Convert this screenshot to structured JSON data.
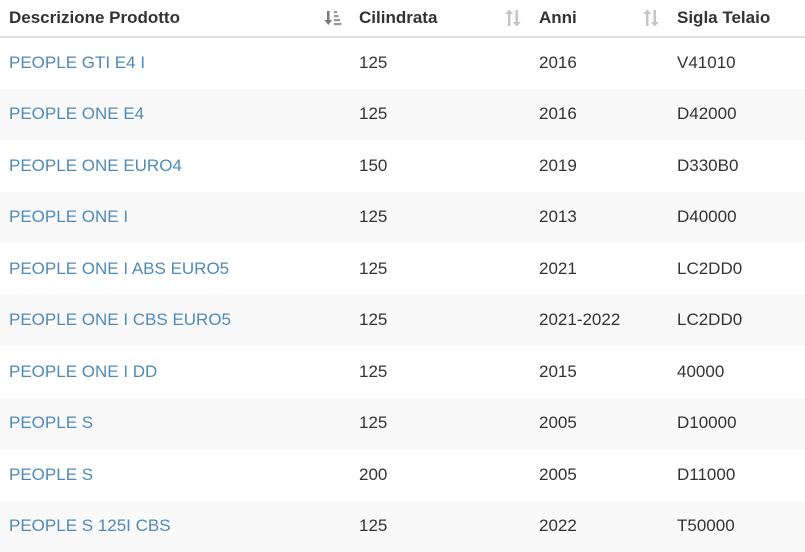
{
  "table": {
    "headers": [
      {
        "label": "Descrizione Prodotto",
        "sort": "sorted-desc",
        "icon": "sort-descending-icon"
      },
      {
        "label": "Cilindrata",
        "sort": "unsorted",
        "icon": "sort-both-icon"
      },
      {
        "label": "Anni",
        "sort": "unsorted",
        "icon": "sort-both-icon"
      },
      {
        "label": "Sigla Telaio",
        "sort": "none",
        "icon": ""
      }
    ],
    "rows": [
      {
        "descrizione": "PEOPLE GTI E4 I",
        "cilindrata": "125",
        "anni": "2016",
        "sigla": "V41010"
      },
      {
        "descrizione": "PEOPLE ONE E4",
        "cilindrata": "125",
        "anni": "2016",
        "sigla": "D42000"
      },
      {
        "descrizione": "PEOPLE ONE EURO4",
        "cilindrata": "150",
        "anni": "2019",
        "sigla": "D330B0"
      },
      {
        "descrizione": "PEOPLE ONE I",
        "cilindrata": "125",
        "anni": "2013",
        "sigla": "D40000"
      },
      {
        "descrizione": "PEOPLE ONE I ABS EURO5",
        "cilindrata": "125",
        "anni": "2021",
        "sigla": "LC2DD0"
      },
      {
        "descrizione": "PEOPLE ONE I CBS EURO5",
        "cilindrata": "125",
        "anni": "2021-2022",
        "sigla": "LC2DD0"
      },
      {
        "descrizione": "PEOPLE ONE I DD",
        "cilindrata": "125",
        "anni": "2015",
        "sigla": "40000"
      },
      {
        "descrizione": "PEOPLE S",
        "cilindrata": "125",
        "anni": "2005",
        "sigla": "D10000"
      },
      {
        "descrizione": "PEOPLE S",
        "cilindrata": "200",
        "anni": "2005",
        "sigla": "D11000"
      },
      {
        "descrizione": "PEOPLE S 125I CBS",
        "cilindrata": "125",
        "anni": "2022",
        "sigla": "T50000"
      }
    ]
  },
  "colors": {
    "link": "#4f8ab8",
    "text": "#333333",
    "stripe": "#f9f9f9",
    "border": "#dddddd",
    "sort_icon": "#b3b3b3",
    "sort_icon_active": "#7a7a7a"
  }
}
